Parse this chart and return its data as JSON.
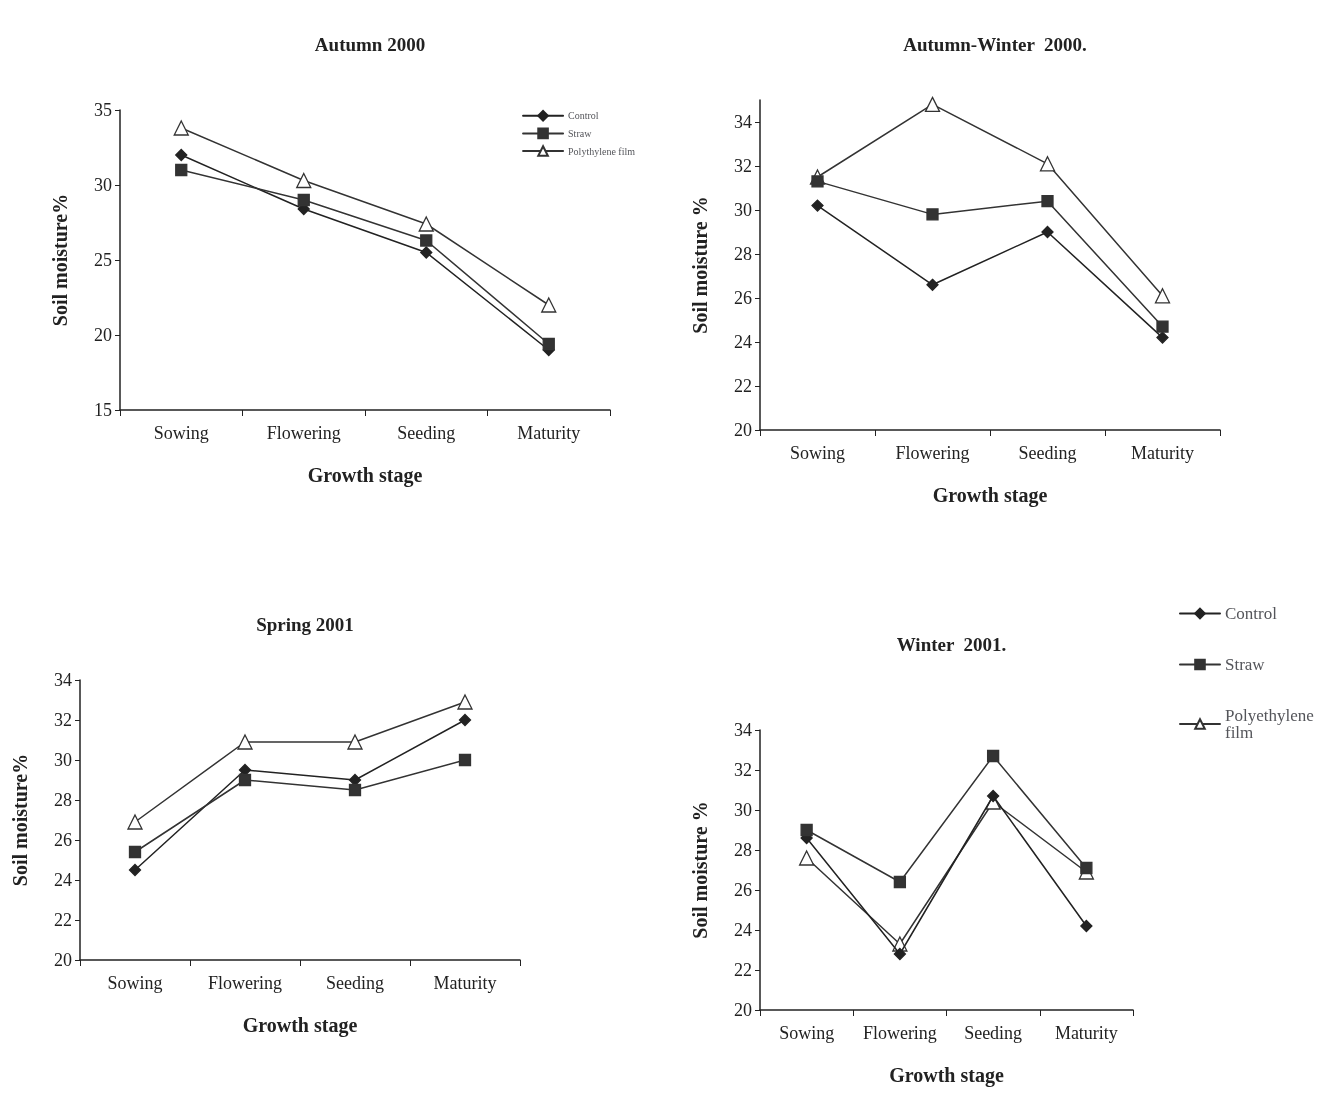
{
  "chart_data": [
    {
      "type": "line",
      "title": "Autumn 2000",
      "xlabel": "Growth stage",
      "ylabel": "Soil moisture%",
      "categories": [
        "Sowing",
        "Flowering",
        "Seeding",
        "Maturity"
      ],
      "ylim": [
        15,
        35
      ],
      "yticks": [
        15,
        20,
        25,
        30,
        35
      ],
      "grid": false,
      "legend": "top right",
      "series": [
        {
          "name": "Control",
          "color": "#222222",
          "marker": "diamond",
          "values": [
            32,
            28.4,
            25.5,
            19
          ]
        },
        {
          "name": "Straw",
          "color": "#333333",
          "marker": "square",
          "values": [
            31,
            29,
            26.3,
            19.4
          ]
        },
        {
          "name": "Polythylene film",
          "color": "#333333",
          "marker": "triangle",
          "values": [
            33.8,
            30.3,
            27.4,
            22
          ]
        }
      ]
    },
    {
      "type": "line",
      "title": "Autumn-Winter  2000.",
      "xlabel": "Growth stage",
      "ylabel": "Soil moisture %",
      "categories": [
        "Sowing",
        "Flowering",
        "Seeding",
        "Maturity"
      ],
      "ylim": [
        20,
        35
      ],
      "yticks": [
        20,
        22,
        24,
        26,
        28,
        30,
        32,
        34
      ],
      "grid": false,
      "series": [
        {
          "color": "#222222",
          "marker": "diamond",
          "values": [
            30.2,
            26.6,
            29,
            24.2
          ]
        },
        {
          "color": "#333333",
          "marker": "square",
          "values": [
            31.3,
            29.8,
            30.4,
            24.7
          ]
        },
        {
          "color": "#333333",
          "marker": "triangle",
          "values": [
            31.5,
            34.8,
            32.1,
            26.1
          ]
        }
      ]
    },
    {
      "type": "line",
      "title": "Spring 2001",
      "xlabel": "Growth stage",
      "ylabel": "Soil moisture%",
      "categories": [
        "Sowing",
        "Flowering",
        "Seeding",
        "Maturity"
      ],
      "ylim": [
        20,
        34
      ],
      "yticks": [
        20,
        22,
        24,
        26,
        28,
        30,
        32,
        34
      ],
      "grid": false,
      "series": [
        {
          "color": "#222222",
          "marker": "diamond",
          "values": [
            24.5,
            29.5,
            29,
            32
          ]
        },
        {
          "color": "#333333",
          "marker": "square",
          "values": [
            25.4,
            29,
            28.5,
            30
          ]
        },
        {
          "color": "#333333",
          "marker": "triangle",
          "values": [
            26.9,
            30.9,
            30.9,
            32.9
          ]
        }
      ]
    },
    {
      "type": "line",
      "title": "Winter  2001.",
      "xlabel": "Growth stage",
      "ylabel": "Soil moisture %",
      "categories": [
        "Sowing",
        "Flowering",
        "Seeding",
        "Maturity"
      ],
      "ylim": [
        20,
        34
      ],
      "yticks": [
        20,
        22,
        24,
        26,
        28,
        30,
        32,
        34
      ],
      "grid": false,
      "legend": "right",
      "series": [
        {
          "name": "Control",
          "color": "#222222",
          "marker": "diamond",
          "values": [
            28.6,
            22.8,
            30.7,
            24.2
          ]
        },
        {
          "name": "Straw",
          "color": "#333333",
          "marker": "square",
          "values": [
            29,
            26.4,
            32.7,
            27.1
          ]
        },
        {
          "name": "Polyethylene film",
          "color": "#333333",
          "marker": "triangle",
          "values": [
            27.6,
            23.3,
            30.4,
            26.9
          ]
        }
      ]
    }
  ]
}
